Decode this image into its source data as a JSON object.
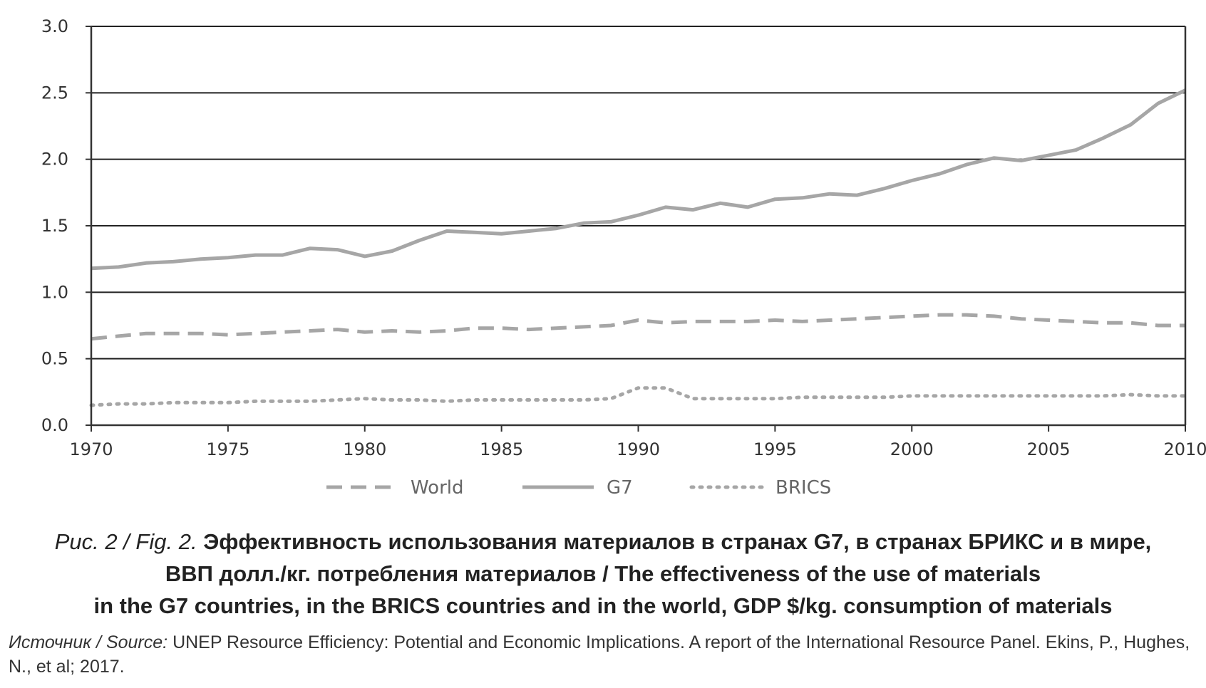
{
  "chart_data": {
    "type": "line",
    "title": "",
    "xlabel": "",
    "ylabel": "",
    "xlim": [
      1970,
      2010
    ],
    "ylim": [
      0,
      3
    ],
    "x_ticks": [
      1970,
      1975,
      1980,
      1985,
      1990,
      1995,
      2000,
      2005,
      2010
    ],
    "y_ticks": [
      0,
      0.5,
      1,
      1.5,
      2,
      2.5,
      3
    ],
    "y_tick_labels": [
      "0.0",
      "0.5",
      "1.0",
      "1.5",
      "2.0",
      "2.5",
      "3.0"
    ],
    "x": [
      1970,
      1971,
      1972,
      1973,
      1974,
      1975,
      1976,
      1977,
      1978,
      1979,
      1980,
      1981,
      1982,
      1983,
      1984,
      1985,
      1986,
      1987,
      1988,
      1989,
      1990,
      1991,
      1992,
      1993,
      1994,
      1995,
      1996,
      1997,
      1998,
      1999,
      2000,
      2001,
      2002,
      2003,
      2004,
      2005,
      2006,
      2007,
      2008,
      2009,
      2010
    ],
    "series": [
      {
        "name": "World",
        "style": "dashed",
        "color": "#a6a6a6",
        "values": [
          0.65,
          0.67,
          0.69,
          0.69,
          0.69,
          0.68,
          0.69,
          0.7,
          0.71,
          0.72,
          0.7,
          0.71,
          0.7,
          0.71,
          0.73,
          0.73,
          0.72,
          0.73,
          0.74,
          0.75,
          0.79,
          0.77,
          0.78,
          0.78,
          0.78,
          0.79,
          0.78,
          0.79,
          0.8,
          0.81,
          0.82,
          0.83,
          0.83,
          0.82,
          0.8,
          0.79,
          0.78,
          0.77,
          0.77,
          0.75,
          0.75
        ]
      },
      {
        "name": "G7",
        "style": "solid",
        "color": "#a6a6a6",
        "values": [
          1.18,
          1.19,
          1.22,
          1.23,
          1.25,
          1.26,
          1.28,
          1.28,
          1.33,
          1.32,
          1.27,
          1.31,
          1.39,
          1.46,
          1.45,
          1.44,
          1.46,
          1.48,
          1.52,
          1.53,
          1.58,
          1.64,
          1.62,
          1.67,
          1.64,
          1.7,
          1.71,
          1.74,
          1.73,
          1.78,
          1.84,
          1.89,
          1.96,
          2.01,
          1.99,
          2.03,
          2.07,
          2.16,
          2.26,
          2.42,
          2.52
        ]
      },
      {
        "name": "BRICS",
        "style": "dotted",
        "color": "#a6a6a6",
        "values": [
          0.15,
          0.16,
          0.16,
          0.17,
          0.17,
          0.17,
          0.18,
          0.18,
          0.18,
          0.19,
          0.2,
          0.19,
          0.19,
          0.18,
          0.19,
          0.19,
          0.19,
          0.19,
          0.19,
          0.2,
          0.28,
          0.28,
          0.2,
          0.2,
          0.2,
          0.2,
          0.21,
          0.21,
          0.21,
          0.21,
          0.22,
          0.22,
          0.22,
          0.22,
          0.22,
          0.22,
          0.22,
          0.22,
          0.23,
          0.22,
          0.22
        ]
      }
    ],
    "legend": [
      "World",
      "G7",
      "BRICS"
    ],
    "legend_position": "bottom",
    "grid": "horizontal"
  },
  "caption": {
    "lead": "Рис. 2 / Fig. 2.",
    "line1": "Эффективность использования материалов в странах G7, в странах БРИКС и в мире,",
    "line2": "ВВП долл./кг. потребления материалов / The effectiveness of the use of materials",
    "line3": "in the G7 countries, in the BRICS countries and in the world, GDP $/kg. consumption of materials"
  },
  "source": {
    "lead": "Источник / Source:",
    "text": "UNEP Resource Efficiency: Potential and Economic Implications. A report of the International Resource Panel. Ekins, P., Hughes, N., et al; 2017."
  },
  "colors": {
    "axis": "#333333",
    "grid": "#222222",
    "line": "#a6a6a6"
  }
}
